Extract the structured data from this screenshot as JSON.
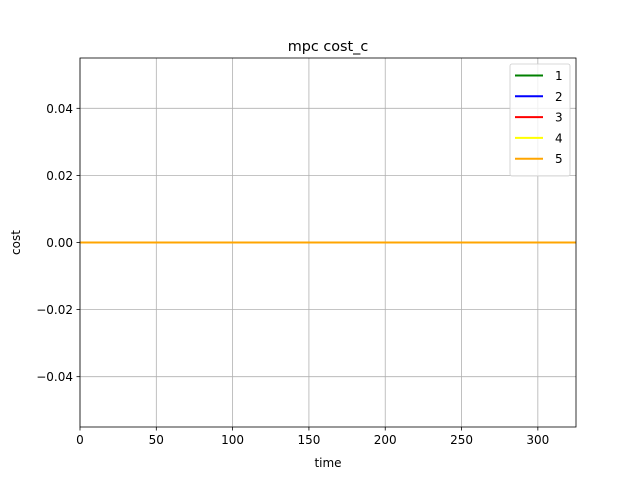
{
  "chart_data": {
    "type": "line",
    "title": "mpc cost_c",
    "xlabel": "time",
    "ylabel": "cost",
    "xlim": [
      0,
      325
    ],
    "ylim": [
      -0.055,
      0.055
    ],
    "xticks": [
      0,
      50,
      100,
      150,
      200,
      250,
      300
    ],
    "yticks": [
      -0.04,
      -0.02,
      0.0,
      0.02,
      0.04
    ],
    "xtick_labels": [
      "0",
      "50",
      "100",
      "150",
      "200",
      "250",
      "300"
    ],
    "ytick_labels": [
      "−0.04",
      "−0.02",
      "0.00",
      "0.02",
      "0.04"
    ],
    "grid": true,
    "legend_position": "top-right",
    "series": [
      {
        "name": "1",
        "color": "#008000",
        "x": [
          0,
          325
        ],
        "y": [
          0,
          0
        ]
      },
      {
        "name": "2",
        "color": "#0000ff",
        "x": [
          0,
          325
        ],
        "y": [
          0,
          0
        ]
      },
      {
        "name": "3",
        "color": "#ff0000",
        "x": [
          0,
          325
        ],
        "y": [
          0,
          0
        ]
      },
      {
        "name": "4",
        "color": "#ffff00",
        "x": [
          0,
          325
        ],
        "y": [
          0,
          0
        ]
      },
      {
        "name": "5",
        "color": "#ffa500",
        "x": [
          0,
          325
        ],
        "y": [
          0,
          0
        ]
      }
    ]
  }
}
